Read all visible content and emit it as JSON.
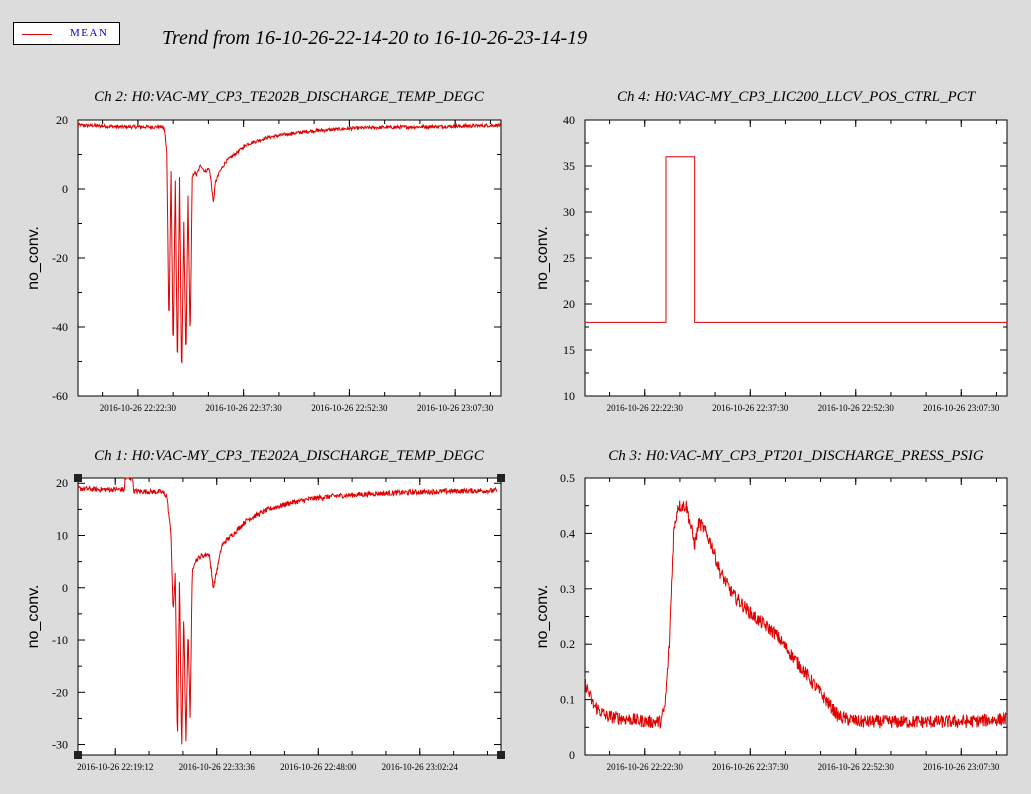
{
  "legend": {
    "label": "MEAN",
    "color": "#e00000"
  },
  "title": "Trend from 16-10-26-22-14-20 to 16-10-26-23-14-19",
  "chart_data": [
    {
      "type": "line",
      "title": "Ch 2: H0:VAC-MY_CP3_TE202B_DISCHARGE_TEMP_DEGC",
      "ylabel": "no_conv.",
      "ylim": [
        -60,
        20
      ],
      "yticks": [
        20,
        0,
        -20,
        -40,
        -60
      ],
      "xtick_labels": [
        "2016-10-26 22:22:30",
        "2016-10-26 22:37:30",
        "2016-10-26 22:52:30",
        "2016-10-26 23:07:30"
      ],
      "xtick_fracs": [
        0.1416,
        0.3916,
        0.6416,
        0.8916
      ],
      "series": [
        {
          "color": "#e00000",
          "x_frac": [
            0.0,
            0.05,
            0.1,
            0.15,
            0.2,
            0.205,
            0.21,
            0.215,
            0.22,
            0.225,
            0.23,
            0.235,
            0.24,
            0.245,
            0.25,
            0.255,
            0.26,
            0.265,
            0.27,
            0.275,
            0.28,
            0.29,
            0.3,
            0.31,
            0.315,
            0.32,
            0.325,
            0.33,
            0.335,
            0.34,
            0.35,
            0.37,
            0.4,
            0.45,
            0.5,
            0.55,
            0.6,
            0.65,
            0.7,
            0.8,
            0.9,
            1.0
          ],
          "y": [
            18.5,
            18.3,
            18.0,
            18.0,
            18.0,
            17.0,
            10.0,
            -40.0,
            5.0,
            -48.0,
            2.0,
            -53.0,
            3.0,
            -56.0,
            -10.0,
            -50.0,
            -2.0,
            -44.0,
            3.0,
            5.0,
            4.0,
            7.0,
            5.0,
            6.0,
            2.0,
            -4.0,
            2.0,
            3.5,
            5.0,
            6.0,
            8.0,
            10.0,
            13.0,
            15.0,
            16.0,
            16.8,
            17.2,
            17.6,
            17.8,
            18.0,
            18.2,
            18.5
          ],
          "noise": 0.5
        }
      ]
    },
    {
      "type": "line",
      "title": "Ch 4: H0:VAC-MY_CP3_LIC200_LLCV_POS_CTRL_PCT",
      "ylabel": "no_conv.",
      "ylim": [
        10,
        40
      ],
      "yticks": [
        40,
        35,
        30,
        25,
        20,
        15,
        10
      ],
      "xtick_labels": [
        "2016-10-26 22:22:30",
        "2016-10-26 22:37:30",
        "2016-10-26 22:52:30",
        "2016-10-26 23:07:30"
      ],
      "xtick_fracs": [
        0.1416,
        0.3916,
        0.6416,
        0.8916
      ],
      "series": [
        {
          "color": "#e00000",
          "x_frac": [
            0.0,
            0.192,
            0.192,
            0.26,
            0.26,
            1.0
          ],
          "y": [
            18,
            18,
            36,
            36,
            18,
            18
          ],
          "noise": 0
        }
      ]
    },
    {
      "type": "line",
      "title": "Ch 1: H0:VAC-MY_CP3_TE202A_DISCHARGE_TEMP_DEGC",
      "ylabel": "no_conv.",
      "ylim": [
        -32,
        21
      ],
      "yticks": [
        20,
        10,
        0,
        -10,
        -20,
        -30
      ],
      "xtick_labels": [
        "2016-10-26 22:19:12",
        "2016-10-26 22:33:36",
        "2016-10-26 22:48:00",
        "2016-10-26 23:02:24"
      ],
      "xtick_fracs": [
        0.088,
        0.328,
        0.568,
        0.808
      ],
      "series": [
        {
          "color": "#e00000",
          "x_frac": [
            0.0,
            0.05,
            0.1,
            0.11,
            0.11,
            0.13,
            0.13,
            0.2,
            0.21,
            0.22,
            0.225,
            0.23,
            0.235,
            0.24,
            0.245,
            0.25,
            0.255,
            0.26,
            0.265,
            0.27,
            0.275,
            0.29,
            0.31,
            0.32,
            0.33,
            0.34,
            0.35,
            0.37,
            0.4,
            0.45,
            0.5,
            0.55,
            0.6,
            0.7,
            0.8,
            0.9,
            0.99
          ],
          "y": [
            19.0,
            18.8,
            18.8,
            18.8,
            21.0,
            21.0,
            18.5,
            18.3,
            17.5,
            10.0,
            -5.0,
            3.0,
            -30.0,
            2.0,
            -32.0,
            -5.0,
            -30.0,
            -8.0,
            -25.0,
            3.0,
            5.0,
            6.0,
            6.5,
            0.0,
            4.0,
            8.0,
            9.0,
            10.5,
            13.0,
            15.0,
            16.2,
            17.0,
            17.5,
            18.0,
            18.3,
            18.5,
            18.6
          ],
          "noise": 0.5
        }
      ]
    },
    {
      "type": "line",
      "title": "Ch 3: H0:VAC-MY_CP3_PT201_DISCHARGE_PRESS_PSIG",
      "ylabel": "no_conv.",
      "ylim": [
        0,
        0.5
      ],
      "yticks": [
        0.5,
        0.4,
        0.3,
        0.2,
        0.1,
        0
      ],
      "xtick_labels": [
        "2016-10-26 22:22:30",
        "2016-10-26 22:37:30",
        "2016-10-26 22:52:30",
        "2016-10-26 23:07:30"
      ],
      "xtick_fracs": [
        0.1416,
        0.3916,
        0.6416,
        0.8916
      ],
      "series": [
        {
          "color": "#e00000",
          "x_frac": [
            0.0,
            0.02,
            0.05,
            0.1,
            0.15,
            0.18,
            0.19,
            0.2,
            0.21,
            0.22,
            0.24,
            0.26,
            0.27,
            0.28,
            0.3,
            0.32,
            0.35,
            0.4,
            0.45,
            0.5,
            0.55,
            0.58,
            0.6,
            0.62,
            0.65,
            0.7,
            0.8,
            0.9,
            1.0
          ],
          "y": [
            0.13,
            0.09,
            0.07,
            0.065,
            0.06,
            0.06,
            0.09,
            0.2,
            0.4,
            0.45,
            0.45,
            0.38,
            0.42,
            0.41,
            0.38,
            0.33,
            0.29,
            0.25,
            0.22,
            0.17,
            0.12,
            0.09,
            0.07,
            0.065,
            0.06,
            0.06,
            0.06,
            0.06,
            0.065
          ],
          "noise": 0.012
        }
      ]
    }
  ]
}
